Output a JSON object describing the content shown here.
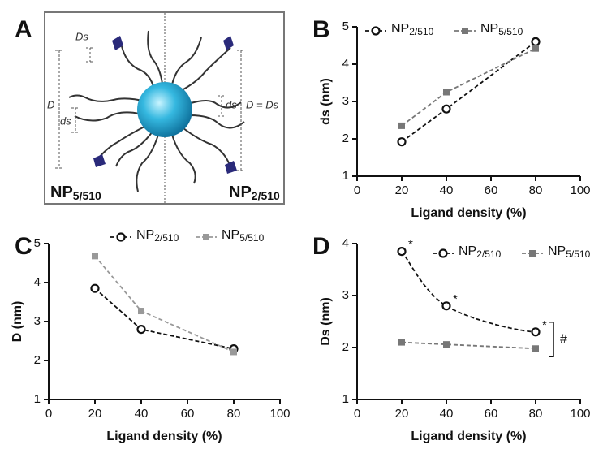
{
  "diagram": {
    "label": "A",
    "left_label": "NP5/510",
    "right_label": "NP2/510",
    "dim_Ds": "Ds",
    "dim_D": "D",
    "dim_ds_left": "ds",
    "dim_ds_right": "ds",
    "dim_right": "D = Ds"
  },
  "chart_data": [
    {
      "type": "line",
      "label": "B",
      "x": [
        20,
        40,
        80
      ],
      "xlabel": "Ligand density (%)",
      "ylabel": "ds (nm)",
      "xlim": [
        0,
        100
      ],
      "xticks": [
        0,
        20,
        40,
        60,
        80,
        100
      ],
      "ylim": [
        1,
        5
      ],
      "yticks": [
        1,
        2,
        3,
        4,
        5
      ],
      "series": [
        {
          "name": "NP2/510",
          "color": "#111111",
          "marker": "circle",
          "values": [
            1.92,
            2.8,
            4.6
          ]
        },
        {
          "name": "NP5/510",
          "color": "#777777",
          "marker": "square",
          "values": [
            2.35,
            3.25,
            4.42
          ]
        }
      ]
    },
    {
      "type": "line",
      "label": "C",
      "x": [
        20,
        40,
        80
      ],
      "xlabel": "Ligand density (%)",
      "ylabel": "D (nm)",
      "xlim": [
        0,
        100
      ],
      "xticks": [
        0,
        20,
        40,
        60,
        80,
        100
      ],
      "ylim": [
        1,
        5
      ],
      "yticks": [
        1,
        2,
        3,
        4,
        5
      ],
      "series": [
        {
          "name": "NP2/510",
          "color": "#111111",
          "marker": "circle",
          "values": [
            3.85,
            2.8,
            2.3
          ]
        },
        {
          "name": "NP5/510",
          "color": "#999999",
          "marker": "square",
          "values": [
            4.68,
            3.27,
            2.22
          ]
        }
      ]
    },
    {
      "type": "line",
      "label": "D",
      "x": [
        20,
        40,
        80
      ],
      "xlabel": "Ligand density (%)",
      "ylabel": "Ds (nm)",
      "xlim": [
        0,
        100
      ],
      "xticks": [
        0,
        20,
        40,
        60,
        80,
        100
      ],
      "ylim": [
        1,
        4
      ],
      "yticks": [
        1,
        2,
        3,
        4
      ],
      "series": [
        {
          "name": "NP2/510",
          "color": "#111111",
          "marker": "circle",
          "smooth": true,
          "values": [
            3.85,
            2.8,
            2.3
          ],
          "point_labels": [
            "*",
            "*",
            "*"
          ]
        },
        {
          "name": "NP5/510",
          "color": "#777777",
          "marker": "square",
          "values": [
            2.1,
            2.06,
            1.98
          ]
        }
      ],
      "significance": "#"
    }
  ]
}
